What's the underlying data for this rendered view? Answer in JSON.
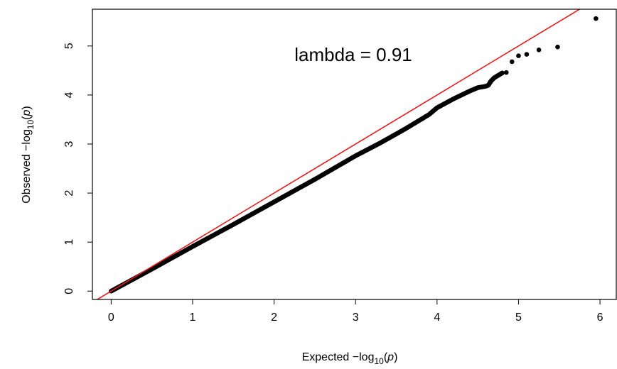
{
  "chart_data": {
    "type": "scatter",
    "title": "",
    "annotation": "lambda = 0.91",
    "xlabel": {
      "prefix": "Expected  −log",
      "sub": "10",
      "open": "(",
      "var": "p",
      "close": ")"
    },
    "ylabel": {
      "prefix": "Observed  −log",
      "sub": "10",
      "open": "(",
      "var": "p",
      "close": ")"
    },
    "xlim": [
      -0.23,
      6.2
    ],
    "ylim": [
      -0.17,
      5.75
    ],
    "x_ticks": [
      0,
      1,
      2,
      3,
      4,
      5,
      6
    ],
    "x_tick_labels": [
      "0",
      "1",
      "2",
      "3",
      "4",
      "5",
      "6"
    ],
    "y_ticks": [
      0,
      1,
      2,
      3,
      4,
      5
    ],
    "y_tick_labels": [
      "0",
      "1",
      "2",
      "3",
      "4",
      "5"
    ],
    "reference_line": {
      "intercept": 0,
      "slope": 1,
      "color": "#e41a1c"
    },
    "point_color": "#000000",
    "trend_points": [
      [
        0.0,
        0.0
      ],
      [
        0.5,
        0.45
      ],
      [
        1.0,
        0.91
      ],
      [
        1.5,
        1.36
      ],
      [
        2.0,
        1.82
      ],
      [
        2.5,
        2.28
      ],
      [
        3.0,
        2.76
      ],
      [
        3.3,
        3.02
      ],
      [
        3.6,
        3.3
      ],
      [
        3.9,
        3.6
      ],
      [
        4.0,
        3.74
      ],
      [
        4.2,
        3.92
      ],
      [
        4.4,
        4.08
      ],
      [
        4.5,
        4.15
      ],
      [
        4.6,
        4.18
      ],
      [
        4.63,
        4.2
      ],
      [
        4.66,
        4.28
      ],
      [
        4.7,
        4.35
      ],
      [
        4.75,
        4.4
      ],
      [
        4.8,
        4.45
      ]
    ],
    "tail_points": [
      [
        4.85,
        4.46
      ],
      [
        4.92,
        4.68
      ],
      [
        5.0,
        4.8
      ],
      [
        5.1,
        4.83
      ],
      [
        5.25,
        4.92
      ],
      [
        5.48,
        4.98
      ],
      [
        5.95,
        5.56
      ]
    ]
  }
}
